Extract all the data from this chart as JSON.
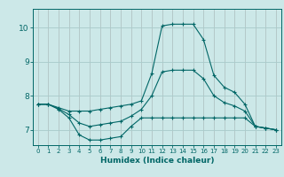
{
  "xlabel": "Humidex (Indice chaleur)",
  "bg_color": "#cce8e8",
  "line_color": "#006666",
  "grid_color": "#aacccc",
  "xlim": [
    -0.5,
    23.5
  ],
  "ylim": [
    6.55,
    10.55
  ],
  "xticks": [
    0,
    1,
    2,
    3,
    4,
    5,
    6,
    7,
    8,
    9,
    10,
    11,
    12,
    13,
    14,
    15,
    16,
    17,
    18,
    19,
    20,
    21,
    22,
    23
  ],
  "yticks": [
    7,
    8,
    9,
    10
  ],
  "line1_y": [
    7.75,
    7.75,
    7.6,
    7.35,
    6.85,
    6.7,
    6.7,
    6.75,
    6.8,
    7.1,
    7.35,
    7.35,
    7.35,
    7.35,
    7.35,
    7.35,
    7.35,
    7.35,
    7.35,
    7.35,
    7.35,
    7.1,
    7.05,
    7.0
  ],
  "line2_y": [
    7.75,
    7.75,
    7.65,
    7.55,
    7.55,
    7.55,
    7.6,
    7.65,
    7.7,
    7.75,
    7.85,
    8.65,
    10.05,
    10.1,
    10.1,
    10.1,
    9.65,
    8.6,
    8.25,
    8.1,
    7.75,
    7.1,
    7.05,
    7.0
  ],
  "line3_y": [
    7.75,
    7.75,
    7.62,
    7.45,
    7.2,
    7.1,
    7.15,
    7.2,
    7.25,
    7.4,
    7.6,
    8.0,
    8.7,
    8.75,
    8.75,
    8.75,
    8.5,
    8.0,
    7.8,
    7.7,
    7.55,
    7.1,
    7.05,
    7.0
  ]
}
